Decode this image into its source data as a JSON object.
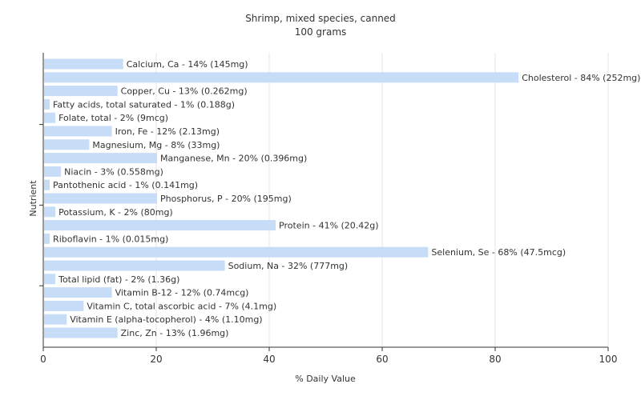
{
  "chart_data": {
    "type": "bar",
    "orientation": "horizontal",
    "title": "Shrimp, mixed species, canned",
    "subtitle": "100 grams",
    "xlabel": "% Daily Value",
    "ylabel": "Nutrient",
    "xlim": [
      0,
      100
    ],
    "xticks": [
      "0",
      "20",
      "40",
      "60",
      "80",
      "100"
    ],
    "grid": true,
    "bar_color": "#c6dcf7",
    "categories": [
      "Calcium, Ca",
      "Cholesterol",
      "Copper, Cu",
      "Fatty acids, total saturated",
      "Folate, total",
      "Iron, Fe",
      "Magnesium, Mg",
      "Manganese, Mn",
      "Niacin",
      "Pantothenic acid",
      "Phosphorus, P",
      "Potassium, K",
      "Protein",
      "Riboflavin",
      "Selenium, Se",
      "Sodium, Na",
      "Total lipid (fat)",
      "Vitamin B-12",
      "Vitamin C, total ascorbic acid",
      "Vitamin E (alpha-tocopherol)",
      "Zinc, Zn"
    ],
    "values": [
      14,
      84,
      13,
      1,
      2,
      12,
      8,
      20,
      3,
      1,
      20,
      2,
      41,
      1,
      68,
      32,
      2,
      12,
      7,
      4,
      13
    ],
    "labels": [
      "Calcium, Ca - 14% (145mg)",
      "Cholesterol - 84% (252mg)",
      "Copper, Cu - 13% (0.262mg)",
      "Fatty acids, total saturated - 1% (0.188g)",
      "Folate, total - 2% (9mcg)",
      "Iron, Fe - 12% (2.13mg)",
      "Magnesium, Mg - 8% (33mg)",
      "Manganese, Mn - 20% (0.396mg)",
      "Niacin - 3% (0.558mg)",
      "Pantothenic acid - 1% (0.141mg)",
      "Phosphorus, P - 20% (195mg)",
      "Potassium, K - 2% (80mg)",
      "Protein - 41% (20.42g)",
      "Riboflavin - 1% (0.015mg)",
      "Selenium, Se - 68% (47.5mcg)",
      "Sodium, Na - 32% (777mg)",
      "Total lipid (fat) - 2% (1.36g)",
      "Vitamin B-12 - 12% (0.74mcg)",
      "Vitamin C, total ascorbic acid - 7% (4.1mg)",
      "Vitamin E (alpha-tocopherol) - 4% (1.10mg)",
      "Zinc, Zn - 13% (1.96mg)"
    ]
  }
}
